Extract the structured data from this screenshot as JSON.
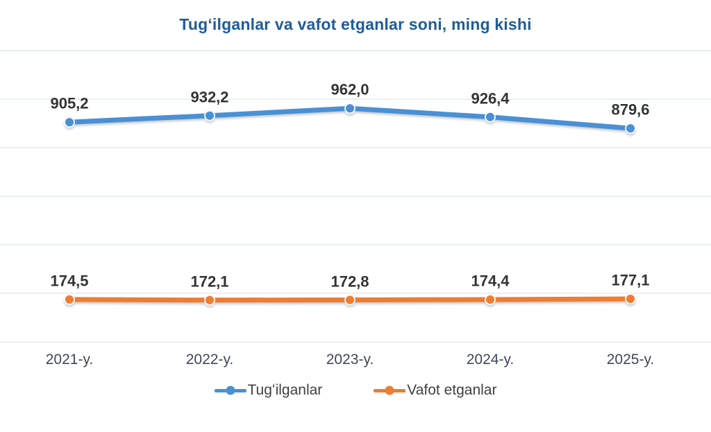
{
  "chart_data": {
    "type": "line",
    "title": "Tugʻilganlar va vafot etganlar soni, ming kishi",
    "title_color": "#1f5c99",
    "categories": [
      "2021-y.",
      "2022-y.",
      "2023-y.",
      "2024-y.",
      "2025-y."
    ],
    "series": [
      {
        "name": "Tugʻilganlar",
        "color": "#4a90d5",
        "values": [
          905.2,
          932.2,
          962.0,
          926.4,
          879.6
        ],
        "labels": [
          "905,2",
          "932,2",
          "962,0",
          "926,4",
          "879,6"
        ]
      },
      {
        "name": "Vafot etganlar",
        "color": "#ed7d31",
        "values": [
          174.5,
          172.1,
          172.8,
          174.4,
          177.1
        ],
        "labels": [
          "174,5",
          "172,1",
          "172,8",
          "174,4",
          "177,1"
        ]
      }
    ],
    "ylim": [
      0,
      1200
    ],
    "gridline_step": 200,
    "grid": true,
    "gridline_color": "#dbe6f3",
    "y_axis_labels_visible": false,
    "legend_position": "bottom",
    "data_label_color": "#333333",
    "x_label_color": "#3e4857"
  }
}
